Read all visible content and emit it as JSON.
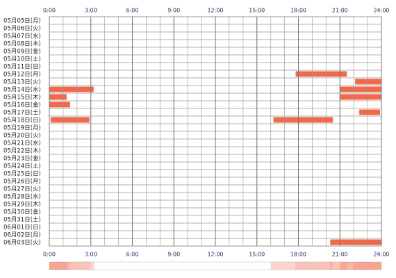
{
  "chart_data": {
    "type": "timeline",
    "categories": [
      "05月05日(月)",
      "05月06日(火)",
      "05月07日(水)",
      "05月08日(木)",
      "05月09日(金)",
      "05月10日(土)",
      "05月11日(日)",
      "05月12日(月)",
      "05月13日(火)",
      "05月14日(水)",
      "05月15日(木)",
      "05月16日(金)",
      "05月17日(土)",
      "05月18日(日)",
      "05月19日(月)",
      "05月20日(火)",
      "05月21日(水)",
      "05月22日(木)",
      "05月23日(金)",
      "05月24日(土)",
      "05月25日(日)",
      "05月26日(月)",
      "05月27日(火)",
      "05月28日(水)",
      "05月29日(木)",
      "05月30日(金)",
      "05月31日(土)",
      "06月01日(日)",
      "06月02日(月)",
      "06月03日(火)"
    ],
    "intervals": [
      [],
      [],
      [],
      [],
      [],
      [],
      [],
      [
        [
          17.8,
          21.5
        ]
      ],
      [
        [
          22.1,
          24
        ]
      ],
      [
        [
          0,
          3.2
        ],
        [
          21,
          24
        ]
      ],
      [
        [
          0,
          1.25
        ],
        [
          21,
          24
        ]
      ],
      [
        [
          0,
          1.5
        ]
      ],
      [
        [
          22.4,
          23.9
        ]
      ],
      [
        [
          0.1,
          2.9
        ],
        [
          16.2,
          20.5
        ]
      ],
      [],
      [],
      [],
      [],
      [],
      [],
      [],
      [],
      [],
      [],
      [],
      [],
      [],
      [],
      [],
      [
        [
          20.3,
          24
        ]
      ]
    ],
    "color": "#f0694a",
    "xlim": [
      0,
      24
    ],
    "xticks": [
      {
        "value": 0,
        "label": "0:00"
      },
      {
        "value": 3,
        "label": "3:00"
      },
      {
        "value": 6,
        "label": "6:00"
      },
      {
        "value": 9,
        "label": "9:00"
      },
      {
        "value": 12,
        "label": "12:00"
      },
      {
        "value": 15,
        "label": "15:00"
      },
      {
        "value": 18,
        "label": "18:00"
      },
      {
        "value": 21,
        "label": "21:00"
      },
      {
        "value": 24,
        "label": "24:00"
      }
    ],
    "minor_xticks": [
      0,
      1,
      2,
      3,
      4,
      5,
      6,
      7,
      8,
      9,
      10,
      11,
      12,
      13,
      14,
      15,
      16,
      17,
      18,
      19,
      20,
      21,
      22,
      23,
      24
    ],
    "grid": true
  }
}
